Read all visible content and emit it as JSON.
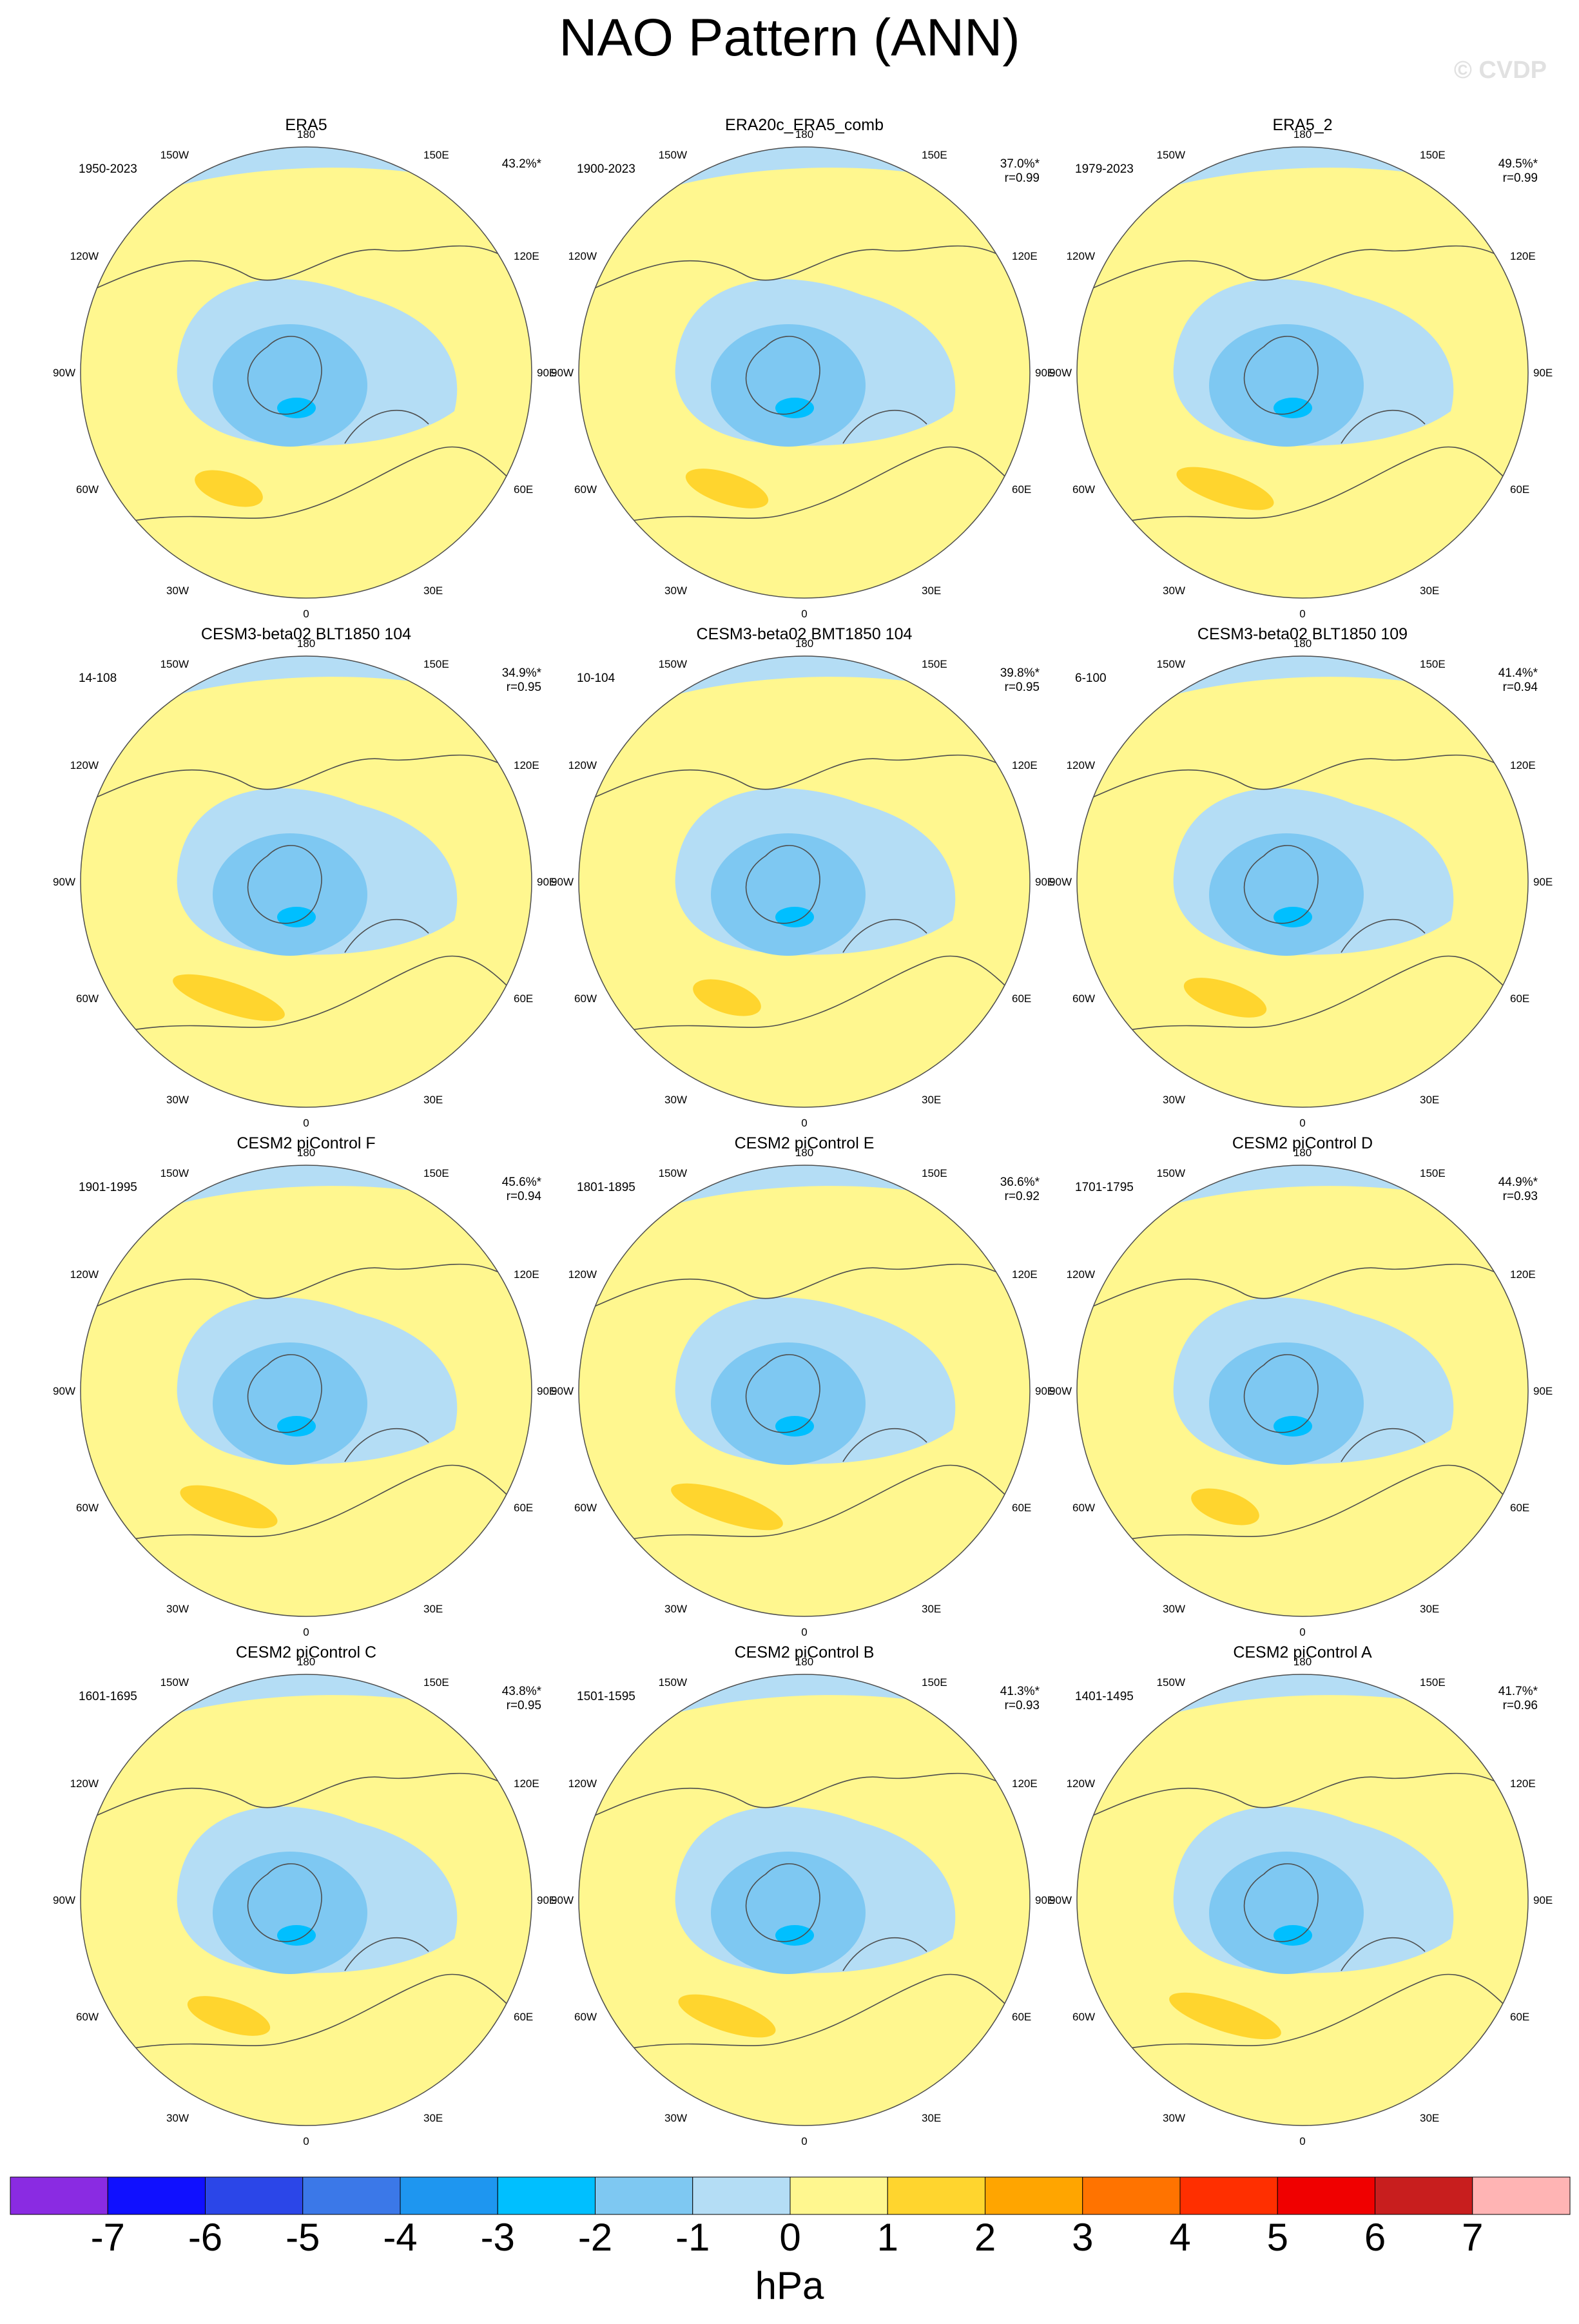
{
  "figure": {
    "title": "NAO Pattern (ANN)",
    "watermark": "© CVDP",
    "units": "hPa"
  },
  "colors": {
    "ocean_land_outline": "#4d4d4d",
    "levels": [
      "#8a2be2",
      "#1010ff",
      "#2b46e8",
      "#3b78e8",
      "#1e96f0",
      "#00bfff",
      "#7ec8f2",
      "#b4ddf5",
      "#fff78f",
      "#ffd52e",
      "#ffa500",
      "#ff7300",
      "#ff2f00",
      "#f00000",
      "#c81e1e",
      "#ffb4b4"
    ]
  },
  "colorbar": {
    "tick_labels": [
      "-7",
      "-6",
      "-5",
      "-4",
      "-3",
      "-2",
      "-1",
      "0",
      "1",
      "2",
      "3",
      "4",
      "5",
      "6",
      "7"
    ]
  },
  "longitude_labels": {
    "top": "180",
    "bottom": "0",
    "upper_left": "150W",
    "upper_right": "150E",
    "mid_upper_left": "120W",
    "mid_upper_right": "120E",
    "left": "90W",
    "right": "90E",
    "mid_lower_left": "60W",
    "mid_lower_right": "60E",
    "lower_left": "30W",
    "lower_right": "30E"
  },
  "panels": [
    {
      "title": "ERA5",
      "years": "1950-2023",
      "pct": "43.2%*",
      "r": ""
    },
    {
      "title": "ERA20c_ERA5_comb",
      "years": "1900-2023",
      "pct": "37.0%*",
      "r": "r=0.99"
    },
    {
      "title": "ERA5_2",
      "years": "1979-2023",
      "pct": "49.5%*",
      "r": "r=0.99"
    },
    {
      "title": "CESM3-beta02 BLT1850 104",
      "years": "14-108",
      "pct": "34.9%*",
      "r": "r=0.95"
    },
    {
      "title": "CESM3-beta02 BMT1850 104",
      "years": "10-104",
      "pct": "39.8%*",
      "r": "r=0.95"
    },
    {
      "title": "CESM3-beta02 BLT1850 109",
      "years": "6-100",
      "pct": "41.4%*",
      "r": "r=0.94"
    },
    {
      "title": "CESM2 piControl F",
      "years": "1901-1995",
      "pct": "45.6%*",
      "r": "r=0.94"
    },
    {
      "title": "CESM2 piControl E",
      "years": "1801-1895",
      "pct": "36.6%*",
      "r": "r=0.92"
    },
    {
      "title": "CESM2 piControl D",
      "years": "1701-1795",
      "pct": "44.9%*",
      "r": "r=0.93"
    },
    {
      "title": "CESM2 piControl C",
      "years": "1601-1695",
      "pct": "43.8%*",
      "r": "r=0.95"
    },
    {
      "title": "CESM2 piControl B",
      "years": "1501-1595",
      "pct": "41.3%*",
      "r": "r=0.93"
    },
    {
      "title": "CESM2 piControl A",
      "years": "1401-1495",
      "pct": "41.7%*",
      "r": "r=0.96"
    }
  ]
}
